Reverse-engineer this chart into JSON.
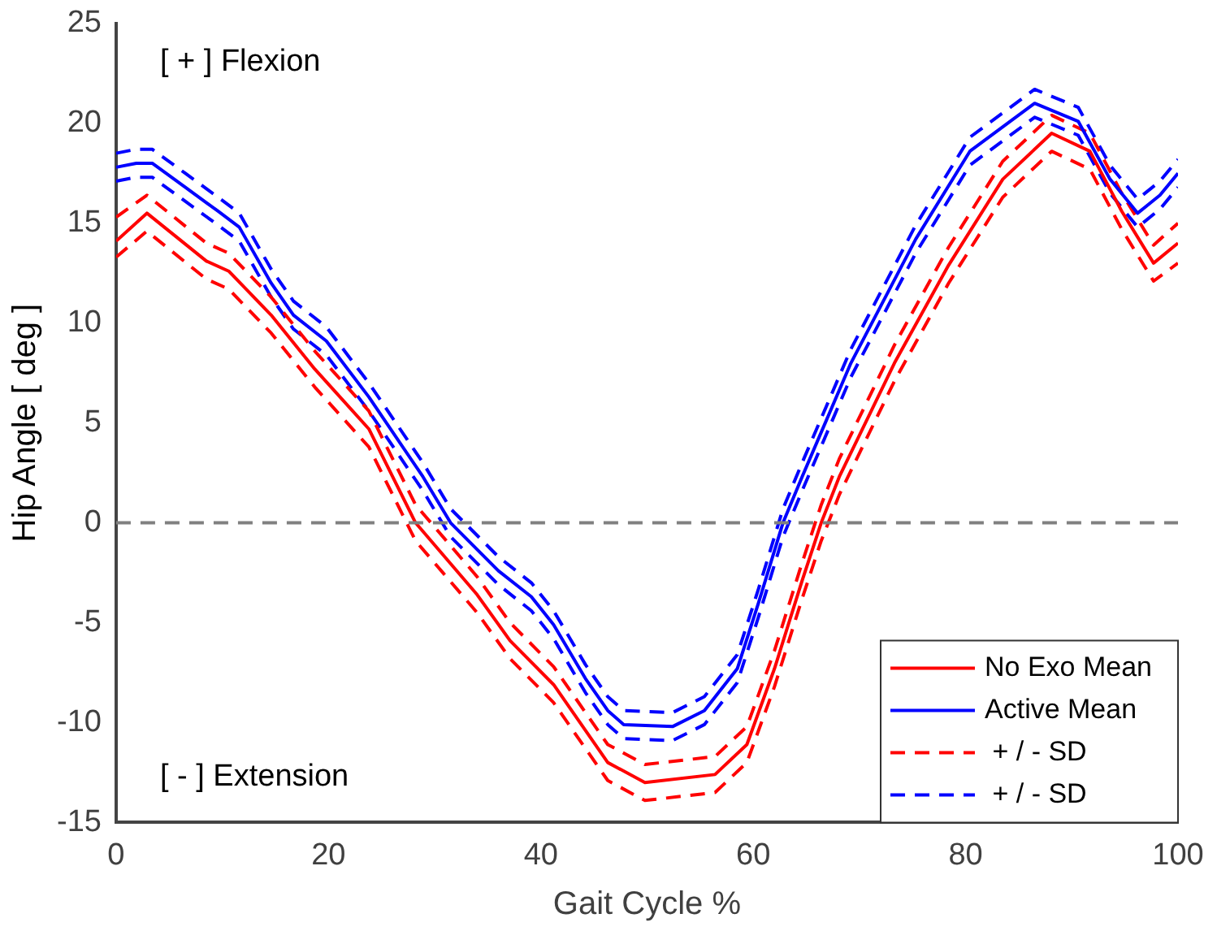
{
  "chart_data": {
    "type": "line",
    "xlabel": "Gait Cycle %",
    "ylabel": "Hip Angle [ deg ]",
    "xlim": [
      0,
      100
    ],
    "xticks": [
      0,
      20,
      40,
      60,
      80,
      100
    ],
    "ylim": [
      -15,
      25
    ],
    "yticks": [
      -15,
      -10,
      -5,
      0,
      5,
      10,
      15,
      20,
      25
    ],
    "grid": false,
    "legend": "bottom right",
    "marker": "none",
    "annotations": [
      "[ + ] Flexion",
      "[ - ] Extension"
    ],
    "ref_lines": [
      {
        "axis": "y",
        "value": 0,
        "color": "#808080",
        "line_style": "dashed"
      }
    ],
    "series": [
      {
        "name": "No Exo Mean",
        "color": "#ff0000",
        "line_style": "solid",
        "x": [
          0,
          2.9,
          8.5,
          10.6,
          14.6,
          18.7,
          23.8,
          28.2,
          34,
          37.1,
          41.2,
          46.3,
          49.8,
          56.4,
          59.4,
          62,
          64.6,
          66.4,
          68.1,
          73.3,
          78.4,
          83.5,
          88.1,
          91.7,
          94.7,
          97.7,
          100
        ],
        "values": [
          14.1,
          15.5,
          13.1,
          12.6,
          10.4,
          7.7,
          4.7,
          0,
          -3.6,
          -5.9,
          -8.1,
          -12.0,
          -13.0,
          -12.6,
          -11.1,
          -7.3,
          -2.9,
          0,
          2.3,
          8.0,
          12.9,
          17.2,
          19.5,
          18.6,
          15.6,
          13.0,
          14.0
        ]
      },
      {
        "name": "Active Mean",
        "color": "#0000ff",
        "line_style": "solid",
        "x": [
          0,
          1.9,
          3.4,
          6.5,
          9.6,
          11.6,
          14.6,
          16.7,
          19.8,
          23.8,
          28.9,
          31.5,
          36,
          39.1,
          41.2,
          44.2,
          46.3,
          47.8,
          52.4,
          55.4,
          58.5,
          60.5,
          62.8,
          64.6,
          69.2,
          75.3,
          80.4,
          86.5,
          90.6,
          93.6,
          96.2,
          98.3,
          100
        ],
        "values": [
          17.8,
          18.0,
          18.0,
          16.8,
          15.6,
          14.8,
          12.0,
          10.4,
          9.1,
          6.3,
          2.3,
          0,
          -2.4,
          -3.7,
          -5.1,
          -7.8,
          -9.4,
          -10.1,
          -10.2,
          -9.4,
          -7.3,
          -4.0,
          0,
          2.3,
          8.0,
          14.2,
          18.6,
          21.0,
          20.1,
          17.2,
          15.5,
          16.4,
          17.5
        ]
      },
      {
        "name": " + / - SD",
        "color": "#ff0000",
        "line_style": "dashed",
        "x": [
          0,
          2.9,
          8.5,
          10.6,
          14.6,
          18.7,
          23.8,
          28.2,
          34,
          37.1,
          41.2,
          46.3,
          49.8,
          56.4,
          59.4,
          62,
          64.6,
          66.4,
          68.1,
          73.3,
          78.4,
          83.5,
          88.1,
          91.7,
          94.7,
          97.7,
          100
        ],
        "values": [
          15.3,
          16.4,
          14.0,
          13.5,
          11.3,
          8.6,
          5.6,
          0.9,
          -2.7,
          -5.0,
          -7.2,
          -11.1,
          -12.1,
          -11.7,
          -10.2,
          -6.4,
          -2.0,
          0.9,
          3.2,
          8.9,
          13.8,
          18.1,
          20.4,
          19.5,
          16.5,
          13.9,
          15.0
        ]
      },
      {
        "name": " + / - SD",
        "color": "#0000ff",
        "line_style": "dashed",
        "x": [
          0,
          1.9,
          3.4,
          6.5,
          9.6,
          11.6,
          14.6,
          16.7,
          19.8,
          23.8,
          28.9,
          31.5,
          36,
          39.1,
          41.2,
          44.2,
          46.3,
          47.8,
          52.4,
          55.4,
          58.5,
          60.5,
          62.8,
          64.6,
          69.2,
          75.3,
          80.4,
          86.5,
          90.6,
          93.6,
          96.2,
          98.3,
          100
        ],
        "values": [
          18.5,
          18.7,
          18.7,
          17.5,
          16.3,
          15.5,
          12.7,
          11.1,
          9.8,
          7.0,
          3.0,
          0.7,
          -1.7,
          -3.0,
          -4.4,
          -7.1,
          -8.7,
          -9.4,
          -9.5,
          -8.7,
          -6.6,
          -3.3,
          0.7,
          3.0,
          8.7,
          14.9,
          19.3,
          21.7,
          20.8,
          17.9,
          16.2,
          17.1,
          18.2
        ]
      },
      {
        "color": "#ff0000",
        "line_style": "dashed",
        "x": [
          0,
          2.9,
          8.5,
          10.6,
          14.6,
          18.7,
          23.8,
          28.2,
          34,
          37.1,
          41.2,
          46.3,
          49.8,
          56.4,
          59.4,
          62,
          64.6,
          66.4,
          68.1,
          73.3,
          78.4,
          83.5,
          88.1,
          91.7,
          94.7,
          97.7,
          100
        ],
        "values": [
          13.3,
          14.6,
          12.2,
          11.7,
          9.5,
          6.8,
          3.8,
          -0.9,
          -4.5,
          -6.8,
          -9.0,
          -12.9,
          -13.9,
          -13.5,
          -12.0,
          -8.2,
          -3.8,
          -0.9,
          1.4,
          7.1,
          12.0,
          16.3,
          18.6,
          17.7,
          14.7,
          12.1,
          13.0
        ]
      },
      {
        "color": "#0000ff",
        "line_style": "dashed",
        "x": [
          0,
          1.9,
          3.4,
          6.5,
          9.6,
          11.6,
          14.6,
          16.7,
          19.8,
          23.8,
          28.9,
          31.5,
          36,
          39.1,
          41.2,
          44.2,
          46.3,
          47.8,
          52.4,
          55.4,
          58.5,
          60.5,
          62.8,
          64.6,
          69.2,
          75.3,
          80.4,
          86.5,
          90.6,
          93.6,
          96.2,
          98.3,
          100
        ],
        "values": [
          17.1,
          17.3,
          17.3,
          16.1,
          14.9,
          14.1,
          11.3,
          9.7,
          8.4,
          5.6,
          1.6,
          -0.7,
          -3.1,
          -4.4,
          -5.8,
          -8.5,
          -10.1,
          -10.8,
          -10.9,
          -10.1,
          -8.0,
          -4.7,
          -0.7,
          1.6,
          7.3,
          13.5,
          17.9,
          20.3,
          19.4,
          16.5,
          14.8,
          15.7,
          16.8
        ]
      }
    ]
  }
}
